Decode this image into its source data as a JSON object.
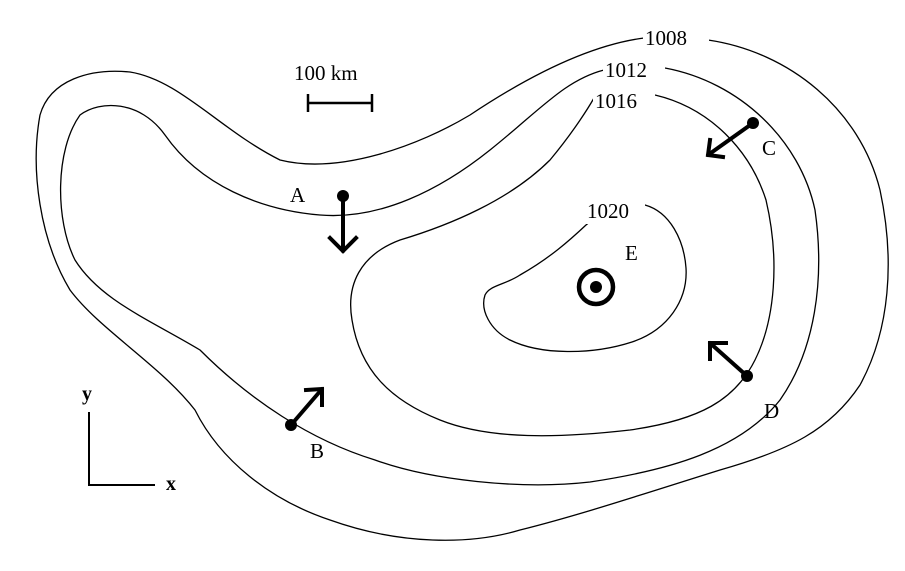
{
  "scale_bar": {
    "label": "100 km"
  },
  "isobars": [
    {
      "id": "isobar-1008",
      "label": "1008"
    },
    {
      "id": "isobar-1012",
      "label": "1012"
    },
    {
      "id": "isobar-1016",
      "label": "1016"
    },
    {
      "id": "isobar-1020",
      "label": "1020"
    }
  ],
  "stations": [
    {
      "id": "A",
      "label": "A",
      "wind_direction": "south"
    },
    {
      "id": "B",
      "label": "B",
      "wind_direction": "north-east"
    },
    {
      "id": "C",
      "label": "C",
      "wind_direction": "south-west"
    },
    {
      "id": "D",
      "label": "D",
      "wind_direction": "north-west"
    },
    {
      "id": "E",
      "label": "E",
      "symbol": "high-pressure-center"
    }
  ],
  "axes": {
    "x_label": "x",
    "y_label": "y"
  }
}
